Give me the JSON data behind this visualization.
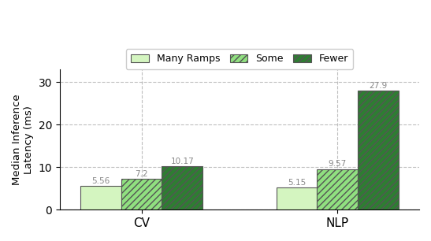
{
  "categories": [
    "CV",
    "NLP"
  ],
  "series": {
    "Many Ramps": [
      5.56,
      5.15
    ],
    "Some": [
      7.2,
      9.57
    ],
    "Fewer": [
      10.17,
      27.9
    ]
  },
  "colors": {
    "Many Ramps": "#d4f5c0",
    "Some": "#90e080",
    "Fewer": "#2e7d32"
  },
  "hatch": {
    "Many Ramps": "",
    "Some": "////",
    "Fewer": "////"
  },
  "hatch_color": {
    "Many Ramps": "#555555",
    "Some": "#555555",
    "Fewer": "#5aaa5a"
  },
  "ylabel": "Median Inference\nLatency (ms)",
  "yticks": [
    0,
    10,
    20,
    30
  ],
  "ylim": [
    0,
    33
  ],
  "bar_width": 0.25,
  "group_centers": [
    0.5,
    1.7
  ],
  "legend_labels": [
    "Many Ramps",
    "Some",
    "Fewer"
  ],
  "label_color": "#888888",
  "edgecolor": "#555555",
  "figsize": [
    5.47,
    3.06
  ],
  "dpi": 100
}
